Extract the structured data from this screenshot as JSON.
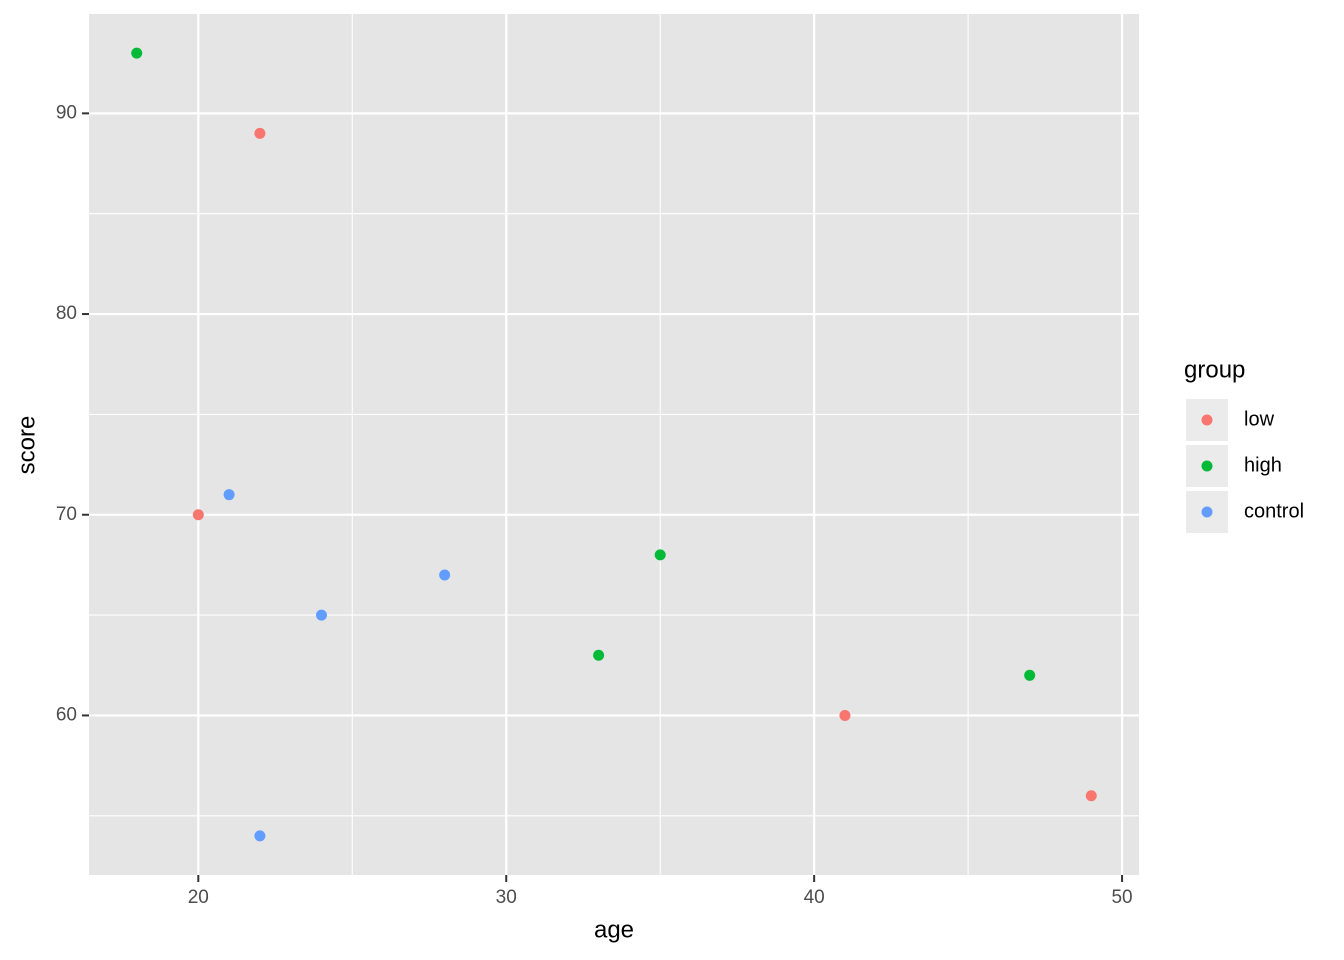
{
  "chart_data": {
    "type": "scatter",
    "x_label": "age",
    "y_label": "score",
    "legend_title": "group",
    "series": [
      {
        "name": "low",
        "color": "#f8766d",
        "x": [
          22,
          20,
          41,
          49
        ],
        "values": [
          89,
          70,
          60,
          56
        ]
      },
      {
        "name": "high",
        "color": "#00ba38",
        "x": [
          18,
          35,
          33,
          47
        ],
        "values": [
          93,
          68,
          63,
          62
        ]
      },
      {
        "name": "control",
        "color": "#619cff",
        "x": [
          21,
          24,
          28,
          22
        ],
        "values": [
          71,
          65,
          67,
          54
        ]
      }
    ],
    "xlim": [
      16.45,
      50.55
    ],
    "ylim": [
      52.05,
      94.95
    ],
    "xticks": [
      20,
      30,
      40,
      50
    ],
    "yticks": [
      60,
      70,
      80,
      90
    ],
    "x_minor_ticks": [
      25,
      35,
      45
    ],
    "y_minor_ticks": [
      55,
      65,
      75,
      85
    ],
    "grid": true,
    "legend": "right"
  }
}
